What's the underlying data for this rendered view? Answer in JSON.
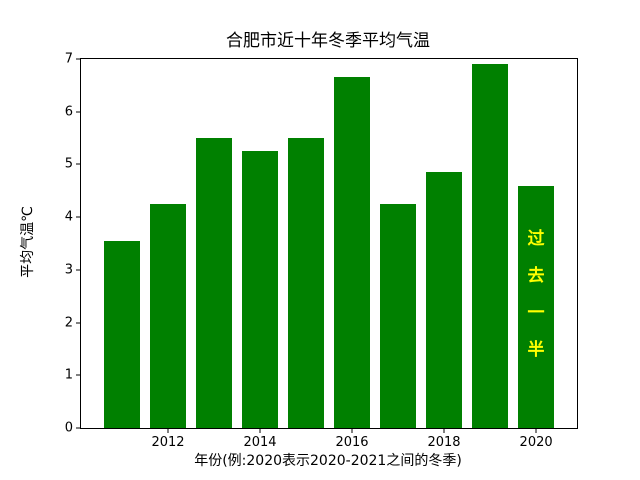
{
  "chart_data": {
    "type": "bar",
    "title": "合肥市近十年冬季平均气温",
    "xlabel": "年份(例:2020表示2020-2021之间的冬季)",
    "ylabel": "平均气温℃",
    "categories": [
      2011,
      2012,
      2013,
      2014,
      2015,
      2016,
      2017,
      2018,
      2019,
      2020
    ],
    "values": [
      3.55,
      4.25,
      5.5,
      5.25,
      5.5,
      6.65,
      4.25,
      4.85,
      6.9,
      4.6
    ],
    "bar_color": "#008000",
    "bar_width": 0.8,
    "ylim": [
      0,
      7
    ],
    "yticks": [
      0,
      1,
      2,
      3,
      4,
      5,
      6,
      7
    ],
    "xticks": [
      2012,
      2014,
      2016,
      2018,
      2020
    ],
    "grid": false,
    "legend": null,
    "annotation": {
      "text": "过去一半",
      "color": "#ffff00",
      "bar_index": 9
    }
  }
}
